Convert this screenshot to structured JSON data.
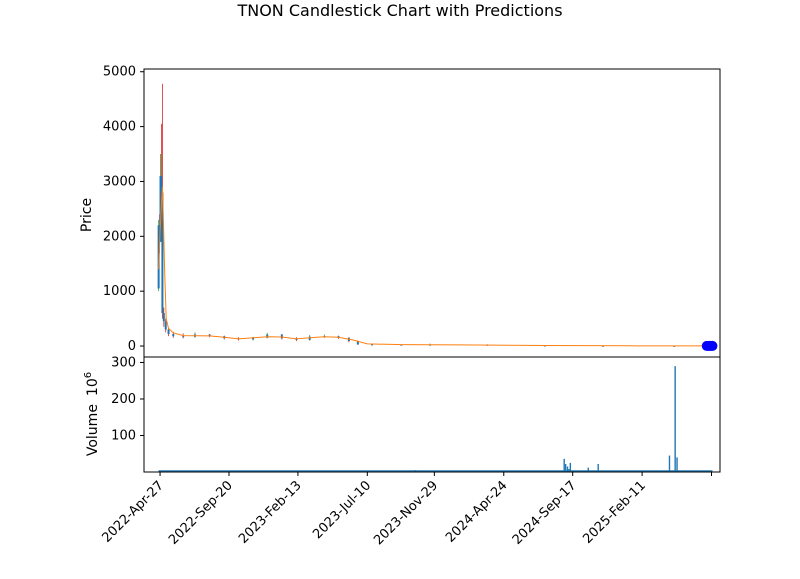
{
  "chart_data": {
    "type": "candlestick",
    "title": "TNON Candlestick Chart with Predictions",
    "price_panel": {
      "ylabel": "Price",
      "ylim": [
        -200,
        5050
      ],
      "yticks": [
        0,
        1000,
        2000,
        3000,
        4000,
        5000
      ],
      "candles": [
        {
          "date": "2022-04-24",
          "open": 1050,
          "high": 2300,
          "low": 1000,
          "close": 2200
        },
        {
          "date": "2022-04-26",
          "open": 2200,
          "high": 2400,
          "low": 1700,
          "close": 1900
        },
        {
          "date": "2022-04-28",
          "open": 1900,
          "high": 3500,
          "low": 1900,
          "close": 3100
        },
        {
          "date": "2022-04-30",
          "open": 3100,
          "high": 4050,
          "low": 2600,
          "close": 2800
        },
        {
          "date": "2022-05-02",
          "open": 2800,
          "high": 4780,
          "low": 500,
          "close": 600
        },
        {
          "date": "2022-05-05",
          "open": 600,
          "high": 700,
          "low": 350,
          "close": 450
        },
        {
          "date": "2022-05-09",
          "open": 450,
          "high": 500,
          "low": 250,
          "close": 300
        },
        {
          "date": "2022-05-15",
          "open": 300,
          "high": 320,
          "low": 180,
          "close": 220
        },
        {
          "date": "2022-05-25",
          "open": 220,
          "high": 260,
          "low": 150,
          "close": 180
        },
        {
          "date": "2022-06-15",
          "open": 180,
          "high": 230,
          "low": 140,
          "close": 170
        },
        {
          "date": "2022-07-10",
          "open": 170,
          "high": 250,
          "low": 150,
          "close": 210
        },
        {
          "date": "2022-08-10",
          "open": 210,
          "high": 220,
          "low": 160,
          "close": 180
        },
        {
          "date": "2022-09-10",
          "open": 180,
          "high": 190,
          "low": 120,
          "close": 140
        },
        {
          "date": "2022-10-10",
          "open": 140,
          "high": 160,
          "low": 100,
          "close": 120
        },
        {
          "date": "2022-11-10",
          "open": 120,
          "high": 170,
          "low": 100,
          "close": 150
        },
        {
          "date": "2022-12-10",
          "open": 150,
          "high": 240,
          "low": 140,
          "close": 210
        },
        {
          "date": "2023-01-10",
          "open": 210,
          "high": 220,
          "low": 120,
          "close": 140
        },
        {
          "date": "2023-02-10",
          "open": 140,
          "high": 160,
          "low": 90,
          "close": 110
        },
        {
          "date": "2023-03-10",
          "open": 110,
          "high": 200,
          "low": 100,
          "close": 170
        },
        {
          "date": "2023-04-10",
          "open": 170,
          "high": 210,
          "low": 150,
          "close": 180
        },
        {
          "date": "2023-05-10",
          "open": 180,
          "high": 190,
          "low": 130,
          "close": 150
        },
        {
          "date": "2023-06-01",
          "open": 150,
          "high": 160,
          "low": 70,
          "close": 90
        },
        {
          "date": "2023-06-20",
          "open": 90,
          "high": 100,
          "low": 20,
          "close": 30
        },
        {
          "date": "2023-07-20",
          "open": 30,
          "high": 40,
          "low": 15,
          "close": 25
        },
        {
          "date": "2023-09-20",
          "open": 25,
          "high": 30,
          "low": 10,
          "close": 20
        },
        {
          "date": "2023-11-20",
          "open": 20,
          "high": 45,
          "low": 15,
          "close": 25
        },
        {
          "date": "2024-03-20",
          "open": 25,
          "high": 30,
          "low": 5,
          "close": 10
        },
        {
          "date": "2024-07-20",
          "open": 10,
          "high": 15,
          "low": 2,
          "close": 5
        },
        {
          "date": "2024-11-20",
          "open": 5,
          "high": 8,
          "low": 1,
          "close": 3
        },
        {
          "date": "2025-04-20",
          "open": 3,
          "high": 5,
          "low": 1,
          "close": 2
        }
      ],
      "moving_average": [
        {
          "date": "2022-04-24",
          "value": 1400
        },
        {
          "date": "2022-04-27",
          "value": 2100
        },
        {
          "date": "2022-04-30",
          "value": 2600
        },
        {
          "date": "2022-05-02",
          "value": 2900
        },
        {
          "date": "2022-05-04",
          "value": 2300
        },
        {
          "date": "2022-05-07",
          "value": 1300
        },
        {
          "date": "2022-05-10",
          "value": 500
        },
        {
          "date": "2022-05-15",
          "value": 320
        },
        {
          "date": "2022-05-25",
          "value": 240
        },
        {
          "date": "2022-06-15",
          "value": 190
        },
        {
          "date": "2022-08-10",
          "value": 185
        },
        {
          "date": "2022-09-10",
          "value": 160
        },
        {
          "date": "2022-10-10",
          "value": 130
        },
        {
          "date": "2022-12-10",
          "value": 170
        },
        {
          "date": "2023-01-10",
          "value": 165
        },
        {
          "date": "2023-02-10",
          "value": 130
        },
        {
          "date": "2023-03-10",
          "value": 150
        },
        {
          "date": "2023-04-10",
          "value": 170
        },
        {
          "date": "2023-05-10",
          "value": 160
        },
        {
          "date": "2023-06-10",
          "value": 110
        },
        {
          "date": "2023-07-10",
          "value": 40
        },
        {
          "date": "2023-09-20",
          "value": 25
        },
        {
          "date": "2024-01-20",
          "value": 20
        },
        {
          "date": "2024-07-20",
          "value": 10
        },
        {
          "date": "2025-01-20",
          "value": 4
        },
        {
          "date": "2025-06-20",
          "value": 2
        }
      ],
      "predictions": [
        {
          "date": "2025-06-28",
          "value": 2
        },
        {
          "date": "2025-07-01",
          "value": 2
        },
        {
          "date": "2025-07-04",
          "value": 2
        },
        {
          "date": "2025-07-07",
          "value": 2
        },
        {
          "date": "2025-07-10",
          "value": 2
        }
      ]
    },
    "volume_panel": {
      "ylabel": "Volume",
      "ylabel_exponent": "6",
      "ylim": [
        0,
        315
      ],
      "yticks": [
        100,
        200,
        300
      ],
      "bars": [
        {
          "date": "2022-04-25",
          "value": 3
        },
        {
          "date": "2022-06-01",
          "value": 1
        },
        {
          "date": "2022-09-01",
          "value": 0.5
        },
        {
          "date": "2023-01-01",
          "value": 0.5
        },
        {
          "date": "2023-06-01",
          "value": 0.8
        },
        {
          "date": "2023-10-20",
          "value": 5
        },
        {
          "date": "2024-01-01",
          "value": 0.5
        },
        {
          "date": "2024-06-01",
          "value": 1
        },
        {
          "date": "2024-08-30",
          "value": 36
        },
        {
          "date": "2024-09-02",
          "value": 22
        },
        {
          "date": "2024-09-06",
          "value": 15
        },
        {
          "date": "2024-09-09",
          "value": 8
        },
        {
          "date": "2024-09-12",
          "value": 25
        },
        {
          "date": "2024-10-20",
          "value": 12
        },
        {
          "date": "2024-11-10",
          "value": 22
        },
        {
          "date": "2025-01-01",
          "value": 2
        },
        {
          "date": "2025-04-10",
          "value": 45
        },
        {
          "date": "2025-04-22",
          "value": 290
        },
        {
          "date": "2025-04-26",
          "value": 40
        },
        {
          "date": "2025-05-15",
          "value": 3
        },
        {
          "date": "2025-06-20",
          "value": 2
        }
      ]
    },
    "x_axis": {
      "xlim": [
        "2022-03-24",
        "2025-07-26"
      ],
      "ticks": [
        {
          "date": "2022-04-27",
          "label": "2022-Apr-27"
        },
        {
          "date": "2022-09-20",
          "label": "2022-Sep-20"
        },
        {
          "date": "2023-02-13",
          "label": "2023-Feb-13"
        },
        {
          "date": "2023-07-10",
          "label": "2023-Jul-10"
        },
        {
          "date": "2023-11-29",
          "label": "2023-Nov-29"
        },
        {
          "date": "2024-04-24",
          "label": "2024-Apr-24"
        },
        {
          "date": "2024-09-17",
          "label": "2024-Sep-17"
        },
        {
          "date": "2025-02-11",
          "label": "2025-Feb-11"
        },
        {
          "date": "2025-07-08",
          "label": ""
        }
      ]
    },
    "colors": {
      "up": "#2ca02c",
      "down": "#d62728",
      "wick": "#1f77b4",
      "moving_average": "#ff7f0e",
      "prediction": "#0000ff",
      "volume": "#1f77b4"
    }
  }
}
